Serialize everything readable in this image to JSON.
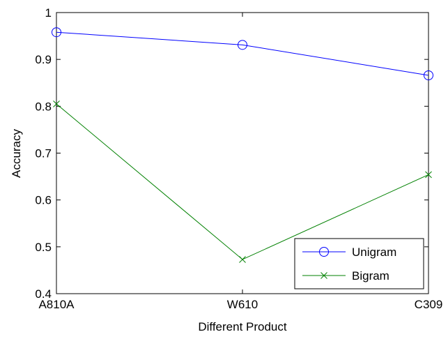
{
  "chart_data": {
    "type": "line",
    "title": "",
    "xlabel": "Different Product",
    "ylabel": "Accuracy",
    "categories": [
      "A810A",
      "W610",
      "C309"
    ],
    "ylim": [
      0.4,
      1.0
    ],
    "yticks": [
      0.4,
      0.5,
      0.6,
      0.7,
      0.8,
      0.9,
      1.0
    ],
    "ytick_labels": [
      "0.4",
      "0.5",
      "0.6",
      "0.7",
      "0.8",
      "0.9",
      "1"
    ],
    "grid": false,
    "legend_position": "bottom-right",
    "series": [
      {
        "name": "Unigram",
        "values": [
          0.958,
          0.931,
          0.866
        ],
        "color": "#0000ff",
        "marker": "circle"
      },
      {
        "name": "Bigram",
        "values": [
          0.805,
          0.473,
          0.654
        ],
        "color": "#008000",
        "marker": "x"
      }
    ]
  }
}
